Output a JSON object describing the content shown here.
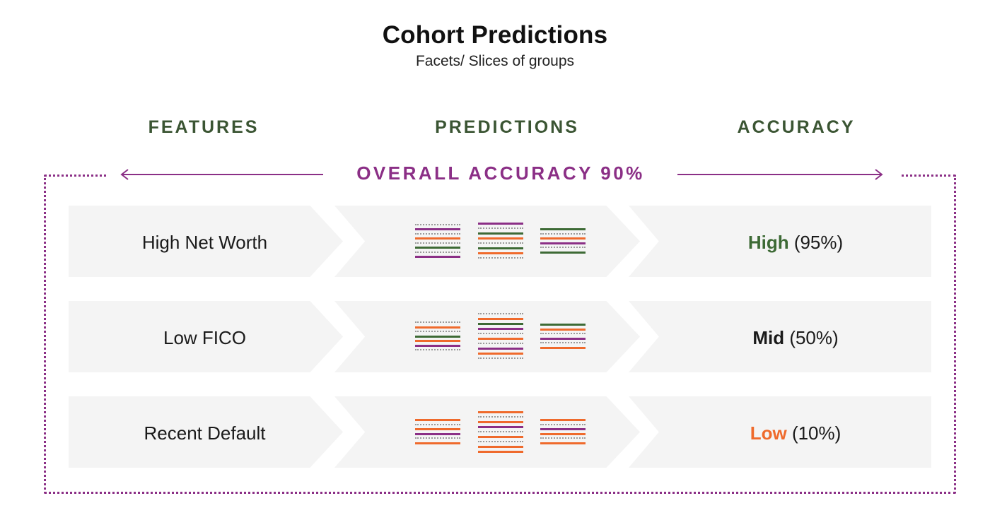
{
  "title": "Cohort Predictions",
  "subtitle": "Facets/ Slices of groups",
  "columns": {
    "features": "FEATURES",
    "predictions": "PREDICTIONS",
    "accuracy": "ACCURACY"
  },
  "overall": "OVERALL ACCURACY 90%",
  "colors": {
    "green": "#3d6a35",
    "orange": "#ef6a2c",
    "purple": "#8b2f86",
    "grey": "#9a9a9a",
    "mid": "#1a1a1a"
  },
  "rows": [
    {
      "feature": "High Net Worth",
      "accuracy_level": "High",
      "accuracy_pct": "(95%)",
      "level_color": "#3d6a35",
      "groups": [
        [
          "grey",
          "purple",
          "grey",
          "orange",
          "grey",
          "green",
          "grey",
          "purple"
        ],
        [
          "purple",
          "grey",
          "green",
          "orange",
          "grey",
          "green",
          "orange",
          "grey"
        ],
        [
          "green",
          "grey",
          "orange",
          "purple",
          "grey",
          "green"
        ]
      ]
    },
    {
      "feature": "Low FICO",
      "accuracy_level": "Mid",
      "accuracy_pct": "(50%)",
      "level_color": "#1a1a1a",
      "groups": [
        [
          "grey",
          "orange",
          "grey",
          "green",
          "orange",
          "purple",
          "grey"
        ],
        [
          "grey",
          "orange",
          "green",
          "purple",
          "grey",
          "orange",
          "grey",
          "purple",
          "orange",
          "grey"
        ],
        [
          "green",
          "orange",
          "grey",
          "purple",
          "grey",
          "orange"
        ]
      ]
    },
    {
      "feature": "Recent Default",
      "accuracy_level": "Low",
      "accuracy_pct": "(10%)",
      "level_color": "#ef6a2c",
      "groups": [
        [
          "orange",
          "grey",
          "orange",
          "purple",
          "grey",
          "orange"
        ],
        [
          "orange",
          "grey",
          "orange",
          "purple",
          "grey",
          "orange",
          "grey",
          "orange",
          "orange"
        ],
        [
          "orange",
          "grey",
          "purple",
          "orange",
          "grey",
          "orange"
        ]
      ]
    }
  ]
}
